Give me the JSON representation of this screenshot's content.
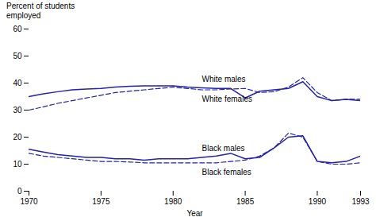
{
  "chart_data": {
    "type": "line",
    "x": [
      1970,
      1971,
      1972,
      1973,
      1974,
      1975,
      1976,
      1977,
      1978,
      1979,
      1980,
      1981,
      1982,
      1983,
      1984,
      1985,
      1986,
      1987,
      1988,
      1989,
      1990,
      1991,
      1992,
      1993
    ],
    "series": [
      {
        "name": "White males",
        "color": "#2222aa",
        "line_style": "solid",
        "values": [
          35.0,
          36.0,
          36.8,
          37.5,
          37.8,
          38.0,
          38.5,
          38.8,
          39.0,
          39.0,
          39.0,
          38.5,
          38.2,
          38.0,
          38.0,
          34.5,
          37.0,
          37.5,
          38.0,
          40.5,
          35.0,
          33.5,
          34.0,
          33.5
        ]
      },
      {
        "name": "White females",
        "color": "#2222aa",
        "line_style": "dashed",
        "values": [
          30.0,
          31.2,
          32.5,
          33.5,
          34.5,
          35.5,
          36.5,
          37.0,
          37.5,
          38.0,
          38.5,
          38.0,
          37.5,
          37.5,
          37.8,
          38.0,
          36.5,
          36.8,
          38.5,
          42.0,
          36.5,
          33.5,
          34.0,
          34.0
        ]
      },
      {
        "name": "Black males",
        "color": "#2222aa",
        "line_style": "solid",
        "values": [
          15.5,
          14.5,
          13.5,
          13.0,
          12.5,
          12.5,
          12.0,
          12.0,
          11.5,
          12.0,
          12.0,
          12.0,
          12.5,
          13.0,
          14.0,
          12.0,
          12.5,
          16.0,
          20.0,
          20.5,
          11.0,
          10.5,
          11.0,
          13.0
        ]
      },
      {
        "name": "Black females",
        "color": "#2222aa",
        "line_style": "dashed",
        "values": [
          14.0,
          13.0,
          12.5,
          12.0,
          11.5,
          11.0,
          11.0,
          10.8,
          10.5,
          10.5,
          10.5,
          10.5,
          10.5,
          10.5,
          11.0,
          11.5,
          13.0,
          16.0,
          21.5,
          20.0,
          11.0,
          10.0,
          10.0,
          10.5
        ]
      }
    ],
    "xlabel": "Year",
    "ylabel": "Percent of students\nemployed",
    "xlim": [
      1970,
      1993
    ],
    "ylim": [
      0,
      60
    ],
    "xticks": [
      1970,
      1975,
      1980,
      1985,
      1990,
      1993
    ],
    "yticks": [
      0,
      10,
      20,
      30,
      40,
      50,
      60
    ]
  }
}
